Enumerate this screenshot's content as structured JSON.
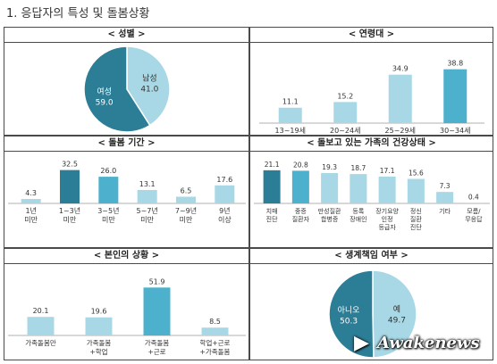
{
  "page_title": "1. 응답자의 특성 및 돌봄상황",
  "watermark": "Awakenews",
  "colors": {
    "dark": "#2c7d96",
    "mid": "#4db0cc",
    "light": "#a8d8e6",
    "border": "#4a4a4a"
  },
  "chart_data": [
    {
      "id": "gender",
      "type": "pie",
      "title": "< 성별 >",
      "slices": [
        {
          "label": "남성",
          "value": 41.0,
          "value_text": "41.0",
          "color": "#a8d8e6",
          "text_color": "#333333"
        },
        {
          "label": "여성",
          "value": 59.0,
          "value_text": "59.0",
          "color": "#2c7d96",
          "text_color": "#ffffff"
        }
      ]
    },
    {
      "id": "age",
      "type": "bar",
      "title": "< 연령대 >",
      "categories": [
        "13~19세",
        "20~24세",
        "25~29세",
        "30~34세"
      ],
      "values": [
        11.1,
        15.2,
        34.9,
        38.8
      ],
      "colors": [
        "#a8d8e6",
        "#a8d8e6",
        "#a8d8e6",
        "#4db0cc"
      ],
      "ylim": [
        0,
        45
      ]
    },
    {
      "id": "care_period",
      "type": "bar",
      "title": "< 돌봄 기간 >",
      "categories": [
        "1년\n미만",
        "1~3년\n미만",
        "3~5년\n미만",
        "5~7년\n미만",
        "7~9년\n미만",
        "9년\n이상"
      ],
      "values": [
        4.3,
        32.5,
        26.0,
        13.1,
        6.5,
        17.6
      ],
      "colors": [
        "#a8d8e6",
        "#2c7d96",
        "#4db0cc",
        "#a8d8e6",
        "#a8d8e6",
        "#a8d8e6"
      ],
      "ylim": [
        0,
        40
      ]
    },
    {
      "id": "family_health",
      "type": "bar",
      "title": "< 돌보고 있는 가족의 건강상태 >",
      "categories": [
        "치매\n진단",
        "중증\n질환자",
        "만성질환\n합병증",
        "등록\n장애인",
        "장기요양\n인정\n등급자",
        "정신\n질환\n진단",
        "기타",
        "모름/\n무응답"
      ],
      "values": [
        21.1,
        20.8,
        19.3,
        18.7,
        17.1,
        15.6,
        7.3,
        0.4
      ],
      "colors": [
        "#2c7d96",
        "#4db0cc",
        "#a8d8e6",
        "#a8d8e6",
        "#a8d8e6",
        "#a8d8e6",
        "#a8d8e6",
        "#a8d8e6"
      ],
      "ylim": [
        0,
        25
      ]
    },
    {
      "id": "status",
      "type": "bar",
      "title": "< 본인의 상황 >",
      "categories": [
        "가족돌봄만",
        "가족돌봄\n+학업",
        "가족돌봄\n+근로",
        "학업+근로\n+가족돌봄"
      ],
      "values": [
        20.1,
        19.6,
        51.9,
        8.5
      ],
      "colors": [
        "#a8d8e6",
        "#a8d8e6",
        "#4db0cc",
        "#a8d8e6"
      ],
      "ylim": [
        0,
        58
      ]
    },
    {
      "id": "livelihood",
      "type": "pie",
      "title": "< 생계책임 여부 >",
      "slices": [
        {
          "label": "예",
          "value": 49.7,
          "value_text": "49.7",
          "color": "#a8d8e6",
          "text_color": "#333333"
        },
        {
          "label": "아니오",
          "value": 50.3,
          "value_text": "50.3",
          "color": "#2c7d96",
          "text_color": "#ffffff"
        }
      ]
    }
  ]
}
